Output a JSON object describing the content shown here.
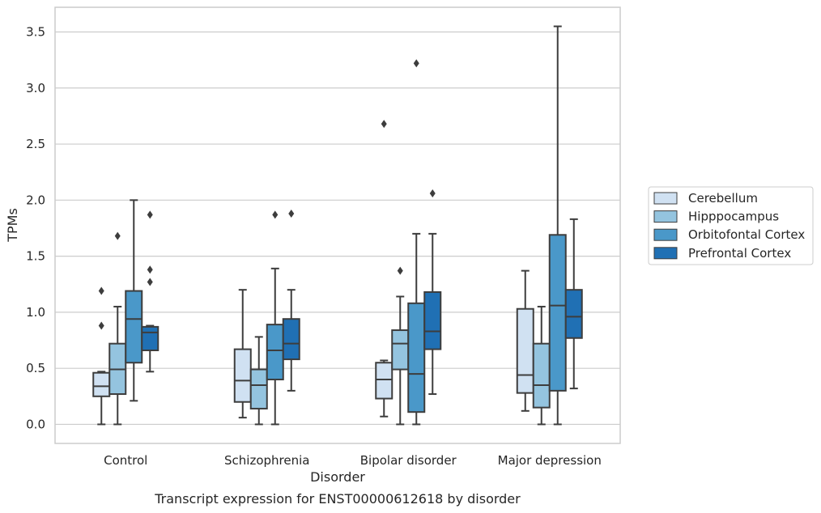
{
  "caption": "Transcript expression for ENST00000612618 by disorder",
  "chart_data": {
    "type": "box",
    "xlabel": "Disorder",
    "ylabel": "TPMs",
    "categories": [
      "Control",
      "Schizophrenia",
      "Bipolar disorder",
      "Major depression"
    ],
    "ylim": [
      -0.17,
      3.72
    ],
    "yticks": [
      "0.0",
      "0.5",
      "1.0",
      "1.5",
      "2.0",
      "2.5",
      "3.0",
      "3.5"
    ],
    "grid": "horizontal",
    "legend_position": "right",
    "series": [
      {
        "name": "Cerebellum",
        "color": "#d0e1f2",
        "boxes": [
          {
            "whisker_low": 0.0,
            "q1": 0.25,
            "median": 0.34,
            "q3": 0.46,
            "whisker_high": 0.47,
            "outliers": [
              1.19,
              0.88
            ]
          },
          {
            "whisker_low": 0.06,
            "q1": 0.2,
            "median": 0.39,
            "q3": 0.67,
            "whisker_high": 1.2,
            "outliers": []
          },
          {
            "whisker_low": 0.07,
            "q1": 0.23,
            "median": 0.4,
            "q3": 0.55,
            "whisker_high": 0.57,
            "outliers": [
              2.68
            ]
          },
          {
            "whisker_low": 0.12,
            "q1": 0.28,
            "median": 0.44,
            "q3": 1.03,
            "whisker_high": 1.37,
            "outliers": []
          }
        ]
      },
      {
        "name": "Hipppocampus",
        "color": "#94c4df",
        "boxes": [
          {
            "whisker_low": 0.0,
            "q1": 0.27,
            "median": 0.49,
            "q3": 0.72,
            "whisker_high": 1.05,
            "outliers": [
              1.68
            ]
          },
          {
            "whisker_low": 0.0,
            "q1": 0.14,
            "median": 0.35,
            "q3": 0.49,
            "whisker_high": 0.78,
            "outliers": []
          },
          {
            "whisker_low": 0.0,
            "q1": 0.49,
            "median": 0.72,
            "q3": 0.84,
            "whisker_high": 1.14,
            "outliers": [
              1.37
            ]
          },
          {
            "whisker_low": 0.0,
            "q1": 0.15,
            "median": 0.35,
            "q3": 0.72,
            "whisker_high": 1.05,
            "outliers": []
          }
        ]
      },
      {
        "name": "Orbitofontal Cortex",
        "color": "#4a98c9",
        "boxes": [
          {
            "whisker_low": 0.21,
            "q1": 0.55,
            "median": 0.94,
            "q3": 1.19,
            "whisker_high": 2.0,
            "outliers": []
          },
          {
            "whisker_low": 0.0,
            "q1": 0.4,
            "median": 0.66,
            "q3": 0.89,
            "whisker_high": 1.39,
            "outliers": [
              1.87
            ]
          },
          {
            "whisker_low": 0.0,
            "q1": 0.11,
            "median": 0.45,
            "q3": 1.08,
            "whisker_high": 1.7,
            "outliers": [
              3.22
            ]
          },
          {
            "whisker_low": 0.0,
            "q1": 0.3,
            "median": 1.06,
            "q3": 1.69,
            "whisker_high": 3.55,
            "outliers": []
          }
        ]
      },
      {
        "name": "Prefrontal Cortex",
        "color": "#2070b4",
        "boxes": [
          {
            "whisker_low": 0.47,
            "q1": 0.66,
            "median": 0.82,
            "q3": 0.87,
            "whisker_high": 0.88,
            "outliers": [
              1.87,
              1.38,
              1.27
            ]
          },
          {
            "whisker_low": 0.3,
            "q1": 0.58,
            "median": 0.72,
            "q3": 0.94,
            "whisker_high": 1.2,
            "outliers": [
              1.88
            ]
          },
          {
            "whisker_low": 0.27,
            "q1": 0.67,
            "median": 0.83,
            "q3": 1.18,
            "whisker_high": 1.7,
            "outliers": [
              2.06
            ]
          },
          {
            "whisker_low": 0.32,
            "q1": 0.77,
            "median": 0.96,
            "q3": 1.2,
            "whisker_high": 1.83,
            "outliers": []
          }
        ]
      }
    ]
  }
}
